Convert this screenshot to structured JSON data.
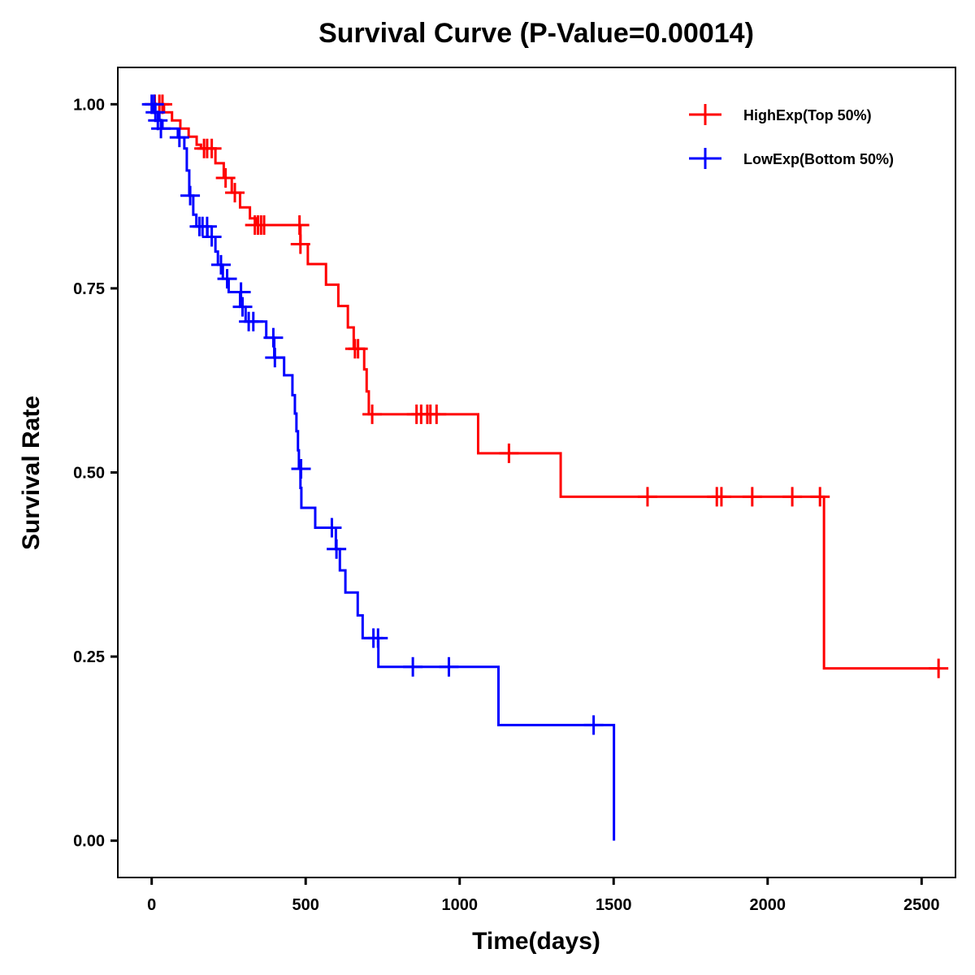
{
  "chart_data": {
    "type": "line",
    "subtype": "kaplan-meier step",
    "title": "Survival Curve (P-Value=0.00014)",
    "xlabel": "Time(days)",
    "ylabel": "Survival Rate",
    "xlim": [
      -110,
      2610
    ],
    "ylim": [
      -0.05,
      1.05
    ],
    "xticks": [
      0,
      500,
      1000,
      1500,
      2000,
      2500
    ],
    "xtick_labels": [
      "0",
      "500",
      "1000",
      "1500",
      "2000",
      "2500"
    ],
    "yticks": [
      0,
      0.25,
      0.5,
      0.75,
      1.0
    ],
    "ytick_labels": [
      "0.00",
      "0.25",
      "0.50",
      "0.75",
      "1.00"
    ],
    "grid": false,
    "legend_position": "top-right",
    "series": [
      {
        "name": "HighExp(Top 50%)",
        "color": "#FF0000",
        "steps": [
          [
            0,
            1.0
          ],
          [
            40,
            0.989
          ],
          [
            66,
            0.978
          ],
          [
            93,
            0.967
          ],
          [
            120,
            0.956
          ],
          [
            146,
            0.945
          ],
          [
            160,
            0.94
          ],
          [
            207,
            0.92
          ],
          [
            234,
            0.9
          ],
          [
            260,
            0.88
          ],
          [
            287,
            0.86
          ],
          [
            319,
            0.845
          ],
          [
            340,
            0.836
          ],
          [
            483,
            0.81
          ],
          [
            507,
            0.783
          ],
          [
            566,
            0.755
          ],
          [
            606,
            0.726
          ],
          [
            637,
            0.697
          ],
          [
            656,
            0.668
          ],
          [
            690,
            0.64
          ],
          [
            698,
            0.61
          ],
          [
            705,
            0.579
          ],
          [
            1060,
            0.526
          ],
          [
            1328,
            0.467
          ],
          [
            2183,
            0.234
          ]
        ],
        "end_time": 2560,
        "censored": [
          [
            10,
            1.0
          ],
          [
            25,
            1.0
          ],
          [
            35,
            1.0
          ],
          [
            170,
            0.94
          ],
          [
            180,
            0.94
          ],
          [
            195,
            0.94
          ],
          [
            240,
            0.9
          ],
          [
            270,
            0.88
          ],
          [
            335,
            0.836
          ],
          [
            345,
            0.836
          ],
          [
            355,
            0.836
          ],
          [
            365,
            0.836
          ],
          [
            480,
            0.836
          ],
          [
            483,
            0.81
          ],
          [
            660,
            0.668
          ],
          [
            670,
            0.668
          ],
          [
            716,
            0.579
          ],
          [
            860,
            0.579
          ],
          [
            875,
            0.579
          ],
          [
            895,
            0.579
          ],
          [
            905,
            0.579
          ],
          [
            925,
            0.579
          ],
          [
            1160,
            0.526
          ],
          [
            1610,
            0.467
          ],
          [
            1835,
            0.467
          ],
          [
            1850,
            0.467
          ],
          [
            1950,
            0.467
          ],
          [
            2080,
            0.467
          ],
          [
            2170,
            0.467
          ],
          [
            2555,
            0.234
          ]
        ]
      },
      {
        "name": "LowExp(Bottom 50%)",
        "color": "#0000FF",
        "steps": [
          [
            0,
            1.0
          ],
          [
            5,
            0.989
          ],
          [
            25,
            0.978
          ],
          [
            35,
            0.967
          ],
          [
            85,
            0.955
          ],
          [
            106,
            0.94
          ],
          [
            114,
            0.91
          ],
          [
            122,
            0.876
          ],
          [
            135,
            0.85
          ],
          [
            145,
            0.834
          ],
          [
            181,
            0.82
          ],
          [
            207,
            0.8
          ],
          [
            215,
            0.782
          ],
          [
            231,
            0.763
          ],
          [
            250,
            0.745
          ],
          [
            287,
            0.725
          ],
          [
            305,
            0.705
          ],
          [
            372,
            0.683
          ],
          [
            398,
            0.656
          ],
          [
            430,
            0.632
          ],
          [
            457,
            0.605
          ],
          [
            465,
            0.58
          ],
          [
            470,
            0.556
          ],
          [
            475,
            0.53
          ],
          [
            478,
            0.505
          ],
          [
            483,
            0.479
          ],
          [
            486,
            0.452
          ],
          [
            531,
            0.425
          ],
          [
            598,
            0.396
          ],
          [
            611,
            0.367
          ],
          [
            629,
            0.337
          ],
          [
            669,
            0.306
          ],
          [
            685,
            0.275
          ],
          [
            736,
            0.236
          ],
          [
            1126,
            0.157
          ],
          [
            1501,
            0.0
          ]
        ],
        "end_time": 1501,
        "censored": [
          [
            0,
            1.0
          ],
          [
            8,
            1.0
          ],
          [
            12,
            0.989
          ],
          [
            20,
            0.978
          ],
          [
            30,
            0.967
          ],
          [
            90,
            0.955
          ],
          [
            125,
            0.876
          ],
          [
            155,
            0.834
          ],
          [
            165,
            0.834
          ],
          [
            180,
            0.834
          ],
          [
            195,
            0.82
          ],
          [
            225,
            0.782
          ],
          [
            245,
            0.763
          ],
          [
            290,
            0.745
          ],
          [
            295,
            0.725
          ],
          [
            315,
            0.705
          ],
          [
            330,
            0.705
          ],
          [
            395,
            0.683
          ],
          [
            400,
            0.656
          ],
          [
            485,
            0.505
          ],
          [
            585,
            0.425
          ],
          [
            600,
            0.396
          ],
          [
            720,
            0.275
          ],
          [
            735,
            0.275
          ],
          [
            848,
            0.236
          ],
          [
            965,
            0.236
          ],
          [
            1435,
            0.157
          ]
        ]
      }
    ]
  }
}
